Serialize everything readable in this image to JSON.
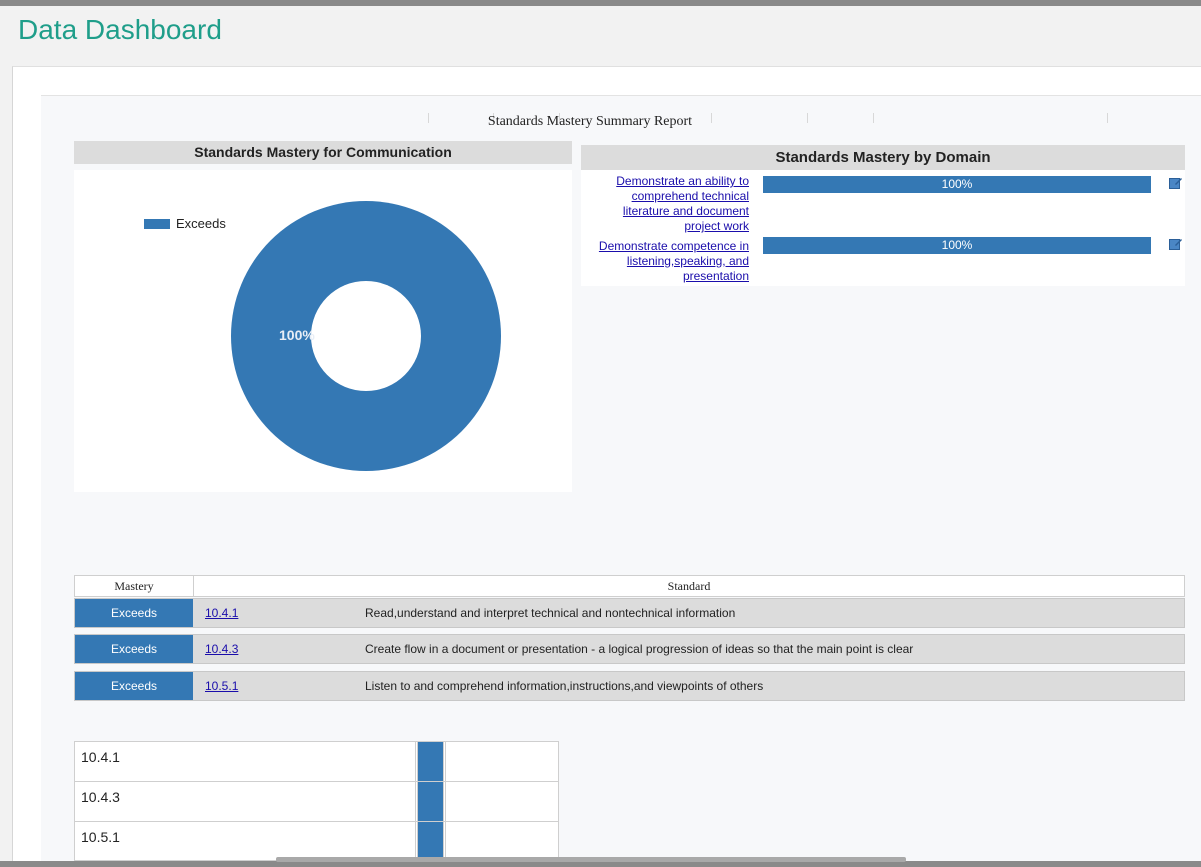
{
  "app": {
    "title": "Data Dashboard"
  },
  "report": {
    "title": "Standards Mastery Summary Report"
  },
  "communication_chart": {
    "heading": "Standards Mastery for Communication",
    "legend": [
      {
        "label": "Exceeds",
        "color": "#3478b4"
      }
    ],
    "slice_label": "100%"
  },
  "domain_panel": {
    "heading": "Standards Mastery by Domain",
    "rows": [
      {
        "link_lines": [
          "Demonstrate an ability to",
          "comprehend technical",
          "literature and document",
          "project work"
        ],
        "percent_label": "100%",
        "icon": "edit-icon"
      },
      {
        "link_lines": [
          "Demonstrate competence in",
          "listening,speaking, and",
          "presentation"
        ],
        "percent_label": "100%",
        "icon": "edit-icon"
      }
    ]
  },
  "standards_table": {
    "headers": {
      "mastery": "Mastery",
      "standard": "Standard"
    },
    "rows": [
      {
        "mastery": "Exceeds",
        "code": "10.4.1",
        "description": "Read,understand and interpret technical and nontechnical information"
      },
      {
        "mastery": "Exceeds",
        "code": "10.4.3",
        "description": "Create flow in a document or presentation - a logical progression of ideas so that the main point is clear"
      },
      {
        "mastery": "Exceeds",
        "code": "10.5.1",
        "description": "Listen to and comprehend information,instructions,and viewpoints of others"
      }
    ]
  },
  "mini_table": {
    "rows": [
      {
        "label": "10.4.1"
      },
      {
        "label": "10.4.3"
      },
      {
        "label": "10.5.1"
      }
    ]
  },
  "chart_data": {
    "type": "pie",
    "variant": "donut",
    "title": "Standards Mastery for Communication",
    "categories": [
      "Exceeds"
    ],
    "values": [
      100
    ],
    "colors": [
      "#3478b4"
    ],
    "data_labels": [
      "100%"
    ],
    "legend_position": "top-left"
  },
  "colors": {
    "accent": "#1f9e8a",
    "bar": "#3478b4",
    "link": "#1a0dab"
  }
}
